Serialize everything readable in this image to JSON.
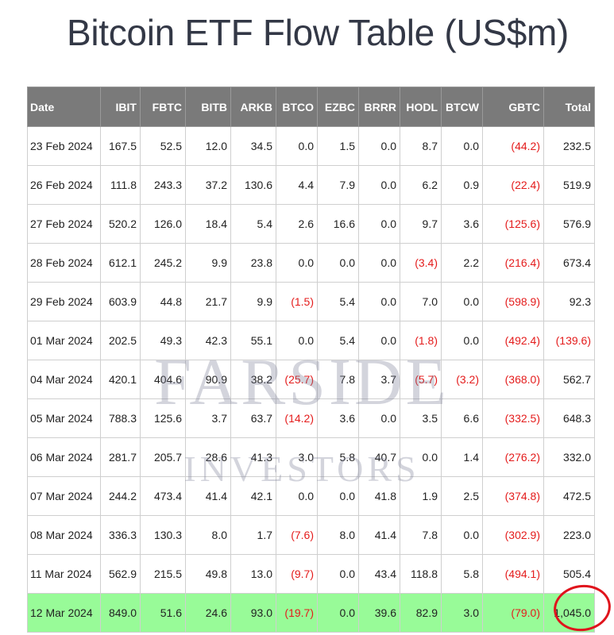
{
  "title": "Bitcoin ETF Flow Table (US$m)",
  "watermark": {
    "line1": "FARSIDE",
    "line2": "INVESTORS"
  },
  "colors": {
    "header_bg": "#7a7a7a",
    "negative": "#e41c1c",
    "highlight_row": "#98fb98",
    "annotation": "#e0141c"
  },
  "table": {
    "columns": [
      "Date",
      "IBIT",
      "FBTC",
      "BITB",
      "ARKB",
      "BTCO",
      "EZBC",
      "BRRR",
      "HODL",
      "BTCW",
      "GBTC",
      "Total"
    ],
    "rows": [
      {
        "cells": [
          "23 Feb 2024",
          "167.5",
          "52.5",
          "12.0",
          "34.5",
          "0.0",
          "1.5",
          "0.0",
          "8.7",
          "0.0",
          "(44.2)",
          "232.5"
        ]
      },
      {
        "cells": [
          "26 Feb 2024",
          "111.8",
          "243.3",
          "37.2",
          "130.6",
          "4.4",
          "7.9",
          "0.0",
          "6.2",
          "0.9",
          "(22.4)",
          "519.9"
        ]
      },
      {
        "cells": [
          "27 Feb 2024",
          "520.2",
          "126.0",
          "18.4",
          "5.4",
          "2.6",
          "16.6",
          "0.0",
          "9.7",
          "3.6",
          "(125.6)",
          "576.9"
        ]
      },
      {
        "cells": [
          "28 Feb 2024",
          "612.1",
          "245.2",
          "9.9",
          "23.8",
          "0.0",
          "0.0",
          "0.0",
          "(3.4)",
          "2.2",
          "(216.4)",
          "673.4"
        ]
      },
      {
        "cells": [
          "29 Feb 2024",
          "603.9",
          "44.8",
          "21.7",
          "9.9",
          "(1.5)",
          "5.4",
          "0.0",
          "7.0",
          "0.0",
          "(598.9)",
          "92.3"
        ]
      },
      {
        "cells": [
          "01 Mar 2024",
          "202.5",
          "49.3",
          "42.3",
          "55.1",
          "0.0",
          "5.4",
          "0.0",
          "(1.8)",
          "0.0",
          "(492.4)",
          "(139.6)"
        ]
      },
      {
        "cells": [
          "04 Mar 2024",
          "420.1",
          "404.6",
          "90.9",
          "38.2",
          "(25.7)",
          "7.8",
          "3.7",
          "(5.7)",
          "(3.2)",
          "(368.0)",
          "562.7"
        ]
      },
      {
        "cells": [
          "05 Mar 2024",
          "788.3",
          "125.6",
          "3.7",
          "63.7",
          "(14.2)",
          "3.6",
          "0.0",
          "3.5",
          "6.6",
          "(332.5)",
          "648.3"
        ]
      },
      {
        "cells": [
          "06 Mar 2024",
          "281.7",
          "205.7",
          "28.6",
          "41.3",
          "3.0",
          "5.8",
          "40.7",
          "0.0",
          "1.4",
          "(276.2)",
          "332.0"
        ]
      },
      {
        "cells": [
          "07 Mar 2024",
          "244.2",
          "473.4",
          "41.4",
          "42.1",
          "0.0",
          "0.0",
          "41.8",
          "1.9",
          "2.5",
          "(374.8)",
          "472.5"
        ]
      },
      {
        "cells": [
          "08 Mar 2024",
          "336.3",
          "130.3",
          "8.0",
          "1.7",
          "(7.6)",
          "8.0",
          "41.4",
          "7.8",
          "0.0",
          "(302.9)",
          "223.0"
        ]
      },
      {
        "cells": [
          "11 Mar 2024",
          "562.9",
          "215.5",
          "49.8",
          "13.0",
          "(9.7)",
          "0.0",
          "43.4",
          "118.8",
          "5.8",
          "(494.1)",
          "505.4"
        ]
      },
      {
        "cells": [
          "12 Mar 2024",
          "849.0",
          "51.6",
          "24.6",
          "93.0",
          "(19.7)",
          "0.0",
          "39.6",
          "82.9",
          "3.0",
          "(79.0)",
          "1,045.0"
        ],
        "highlight": true
      }
    ]
  }
}
